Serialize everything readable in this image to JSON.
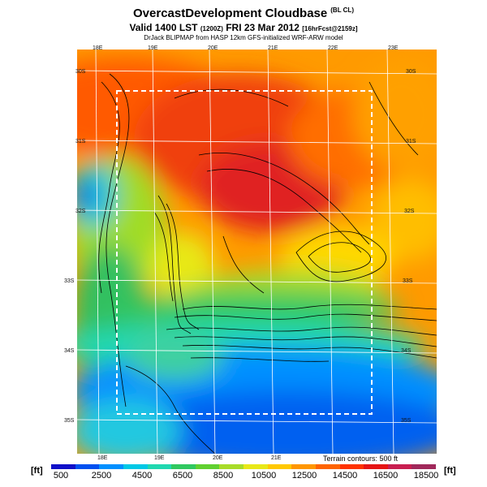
{
  "header": {
    "title": "OvercastDevelopment Cloudbase",
    "title_tag": "(BL CL)",
    "valid_prefix": "Valid 1400 LST",
    "valid_code": "(1200Z)",
    "valid_date": "FRI 23 Mar 2012",
    "forecast": "[16hrFcst@2159z]",
    "model_line": "DrJack BLIPMAP from HASP 12km GFS-initialized WRF-ARW model"
  },
  "map": {
    "lon_top": [
      "18E",
      "19E",
      "20E",
      "21E",
      "22E",
      "23E"
    ],
    "lon_bottom": [
      "18E",
      "19E",
      "20E",
      "21E"
    ],
    "lat_left": [
      "30S",
      "31S",
      "32S",
      "33S",
      "34S",
      "35S"
    ],
    "lat_right": [
      "30S",
      "31S",
      "32S",
      "33S",
      "34S",
      "35S"
    ],
    "terrain_note": "Terrain contours: 500 ft"
  },
  "colorbar": {
    "unit": "[ft]",
    "ticks": [
      "500",
      "2500",
      "4500",
      "6500",
      "8500",
      "10500",
      "12500",
      "14500",
      "16500",
      "18500"
    ],
    "colors": [
      "#1010c8",
      "#0050f0",
      "#0090ff",
      "#00c8e6",
      "#20d8b0",
      "#30c860",
      "#60d030",
      "#a8dc28",
      "#e8e818",
      "#ffc800",
      "#ff9600",
      "#ff6400",
      "#ff3200",
      "#e61414",
      "#c81e50",
      "#a0285a"
    ]
  }
}
